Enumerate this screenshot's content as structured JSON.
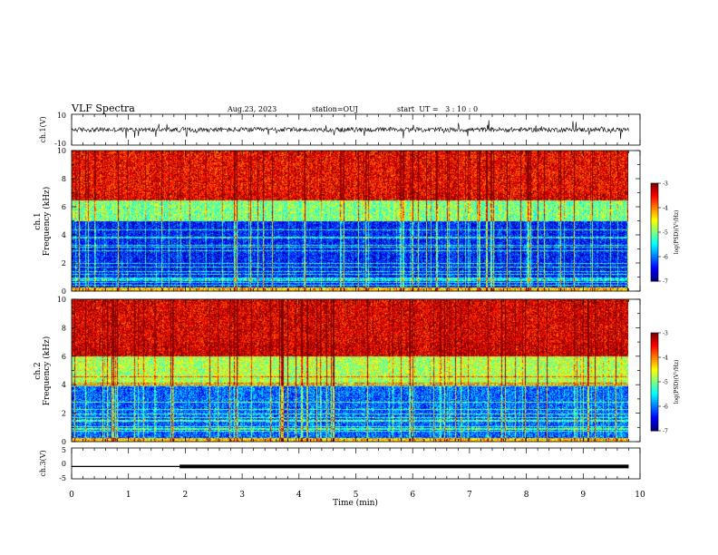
{
  "header": {
    "title": "VLF Spectra",
    "date": "Aug.23, 2023",
    "station": "station=OUJ",
    "start": "start  UT =   3 : 10 : 0"
  },
  "colorbar": {
    "label": "log(PSD)(V²/Hz)",
    "ticks": [
      "-3",
      "-4",
      "-5",
      "-6",
      "-7"
    ]
  },
  "chart_data": [
    {
      "type": "line",
      "panel": "ch1-waveform",
      "ylabel": "ch.1(V)",
      "ylim": [
        -10,
        10
      ],
      "yticks": [
        "10",
        "-10"
      ],
      "xlim": [
        0,
        10
      ],
      "description_values": {
        "baseline_v": 0,
        "noise_amplitude_v": 1.5,
        "spike_amplitude_v": 5
      }
    },
    {
      "type": "heatmap",
      "panel": "ch1-spectrogram",
      "ylabel": "ch.1\nFrequency (kHz)",
      "ylim": [
        0,
        10
      ],
      "yticks": [
        "0",
        "2",
        "4",
        "6",
        "8",
        "10"
      ],
      "xlim": [
        0,
        9.8
      ],
      "colorscale": "jet",
      "zlim": [
        -7,
        -3
      ],
      "zunit": "log(PSD)(V²/Hz)",
      "band_profile": [
        {
          "freq_khz": [
            0,
            0.3
          ],
          "log_psd": -4.5
        },
        {
          "freq_khz": [
            0.3,
            5
          ],
          "log_psd": -6.6
        },
        {
          "freq_khz": [
            5,
            6.5
          ],
          "log_psd": -5.2
        },
        {
          "freq_khz": [
            6.5,
            10
          ],
          "log_psd": -3.6
        }
      ]
    },
    {
      "type": "heatmap",
      "panel": "ch2-spectrogram",
      "ylabel": "ch.2\nFrequency (kHz)",
      "ylim": [
        0,
        10
      ],
      "yticks": [
        "0",
        "2",
        "4",
        "6",
        "8",
        "10"
      ],
      "xlim": [
        0,
        9.8
      ],
      "colorscale": "jet",
      "zlim": [
        -7,
        -3
      ],
      "zunit": "log(PSD)(V²/Hz)",
      "band_profile": [
        {
          "freq_khz": [
            0,
            0.3
          ],
          "log_psd": -4.5
        },
        {
          "freq_khz": [
            0.3,
            4
          ],
          "log_psd": -6.3
        },
        {
          "freq_khz": [
            4,
            6
          ],
          "log_psd": -5.0
        },
        {
          "freq_khz": [
            6,
            10
          ],
          "log_psd": -3.5
        }
      ]
    },
    {
      "type": "line",
      "panel": "ch3-waveform",
      "ylabel": "ch.3(V)",
      "ylim": [
        -5,
        5
      ],
      "yticks": [
        "5",
        "0",
        "-5"
      ],
      "xlim": [
        0,
        10
      ],
      "xlabel": "Time (min)",
      "xticks": [
        "0",
        "1",
        "2",
        "3",
        "4",
        "5",
        "6",
        "7",
        "8",
        "9",
        "10"
      ],
      "x": [
        0,
        1.9,
        1.9,
        9.8
      ],
      "y": [
        -1,
        -1,
        -1,
        -1
      ],
      "segments_thickness": [
        "thin",
        "thick"
      ]
    }
  ]
}
